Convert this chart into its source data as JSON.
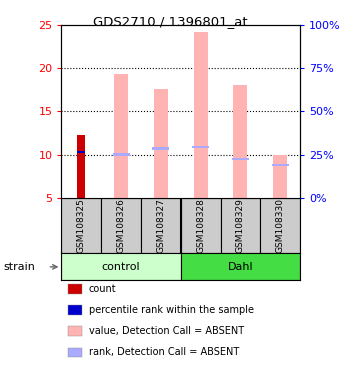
{
  "title": "GDS2710 / 1396801_at",
  "samples": [
    "GSM108325",
    "GSM108326",
    "GSM108327",
    "GSM108328",
    "GSM108329",
    "GSM108330"
  ],
  "ylim_left": [
    5,
    25
  ],
  "ylim_right": [
    0,
    100
  ],
  "yticks_left": [
    5,
    10,
    15,
    20,
    25
  ],
  "yticks_left_labels": [
    "5",
    "10",
    "15",
    "20",
    "25"
  ],
  "yticks_right": [
    0,
    25,
    50,
    75,
    100
  ],
  "yticks_right_labels": [
    "0%",
    "25%",
    "50%",
    "75%",
    "100%"
  ],
  "count_value": 12.25,
  "count_color": "#cc0000",
  "percentile_value": 10.3,
  "percentile_color": "#0000cc",
  "pink_bar_tops": [
    null,
    19.3,
    17.6,
    24.2,
    18.1,
    9.9
  ],
  "pink_bar_bottom": 5.0,
  "pink_bar_color": "#ffb3b3",
  "blue_mark_values": [
    null,
    10.0,
    10.7,
    10.9,
    9.5,
    8.8
  ],
  "blue_mark_color": "#aaaaff",
  "bar_width": 0.35,
  "group_control_color": "#ccffcc",
  "group_dahl_color": "#44dd44",
  "sample_box_color": "#cccccc",
  "dotted_yticks": [
    10,
    15,
    20
  ],
  "legend_items": [
    {
      "label": "count",
      "color": "#cc0000"
    },
    {
      "label": "percentile rank within the sample",
      "color": "#0000cc"
    },
    {
      "label": "value, Detection Call = ABSENT",
      "color": "#ffb3b3"
    },
    {
      "label": "rank, Detection Call = ABSENT",
      "color": "#aaaaff"
    }
  ],
  "fig_width": 3.41,
  "fig_height": 3.84,
  "dpi": 100
}
